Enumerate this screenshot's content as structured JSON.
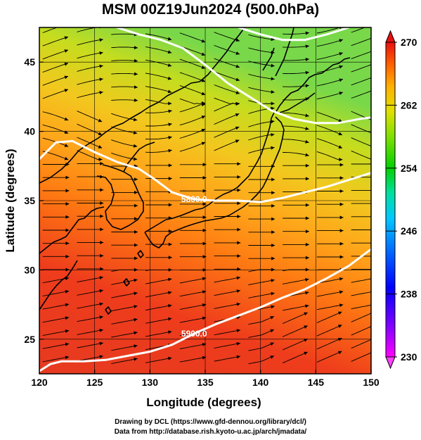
{
  "title": "MSM 00Z19Jun2024 (500.0hPa)",
  "axes": {
    "xlabel": "Longitude (degrees)",
    "ylabel": "Latitude  (degrees)",
    "x_ticks": [
      "120",
      "125",
      "130",
      "135",
      "140",
      "145",
      "150"
    ],
    "y_ticks": [
      "25",
      "30",
      "35",
      "40",
      "45"
    ],
    "xlim": [
      120,
      150
    ],
    "ylim": [
      22.5,
      47.5
    ]
  },
  "colorbar": {
    "ticks": [
      "270",
      "262",
      "254",
      "246",
      "238",
      "230"
    ],
    "range": [
      230,
      270
    ],
    "colors": [
      "#ff00ff",
      "#8000ff",
      "#0000ff",
      "#0080ff",
      "#00c0ff",
      "#00e0a0",
      "#00e000",
      "#80e000",
      "#e0e000",
      "#ffb000",
      "#ff7000",
      "#ff3000",
      "#e81010"
    ]
  },
  "contours": [
    {
      "label": "5800.0",
      "points": [
        [
          120,
          38.0
        ],
        [
          121.5,
          39.2
        ],
        [
          123,
          39.3
        ],
        [
          125,
          38.5
        ],
        [
          127,
          37.8
        ],
        [
          129,
          37.3
        ],
        [
          130.5,
          36.5
        ],
        [
          132,
          35.6
        ],
        [
          134,
          35.1
        ],
        [
          136,
          35.0
        ],
        [
          138,
          35.0
        ],
        [
          140,
          34.9
        ],
        [
          142,
          35.2
        ],
        [
          144,
          35.6
        ],
        [
          146,
          36.0
        ],
        [
          148,
          36.5
        ],
        [
          150,
          37.0
        ]
      ]
    },
    {
      "label": "5900.0",
      "points": [
        [
          120,
          22.7
        ],
        [
          121,
          23.2
        ],
        [
          122,
          23.4
        ],
        [
          124,
          23.4
        ],
        [
          126,
          23.5
        ],
        [
          128,
          23.8
        ],
        [
          130,
          24.1
        ],
        [
          132,
          24.6
        ],
        [
          134,
          25.4
        ],
        [
          136,
          26.1
        ],
        [
          138,
          26.7
        ],
        [
          140,
          27.3
        ],
        [
          142,
          28.0
        ],
        [
          144,
          28.6
        ],
        [
          146,
          29.4
        ],
        [
          148,
          30.3
        ],
        [
          150,
          31.5
        ]
      ]
    },
    {
      "label": "",
      "points": [
        [
          127,
          47.5
        ],
        [
          129,
          47.0
        ],
        [
          131,
          46.6
        ],
        [
          133,
          46.0
        ],
        [
          135,
          44.8
        ],
        [
          137,
          43.5
        ],
        [
          139,
          42.5
        ],
        [
          141,
          41.5
        ],
        [
          143,
          40.9
        ],
        [
          145,
          40.6
        ],
        [
          147,
          40.6
        ],
        [
          149,
          40.9
        ],
        [
          150,
          41.0
        ]
      ]
    },
    {
      "label": "",
      "points": [
        [
          138,
          47.5
        ],
        [
          140,
          47.0
        ],
        [
          142,
          46.6
        ],
        [
          144,
          46.6
        ],
        [
          146,
          47.0
        ],
        [
          148,
          47.5
        ]
      ]
    }
  ],
  "credits": {
    "line1": "Drawing by DCL (https://www.gfd-dennou.org/library/dcl/)",
    "line2": "Data from http://database.rish.kyoto-u.ac.jp/arch/jmadata/"
  }
}
